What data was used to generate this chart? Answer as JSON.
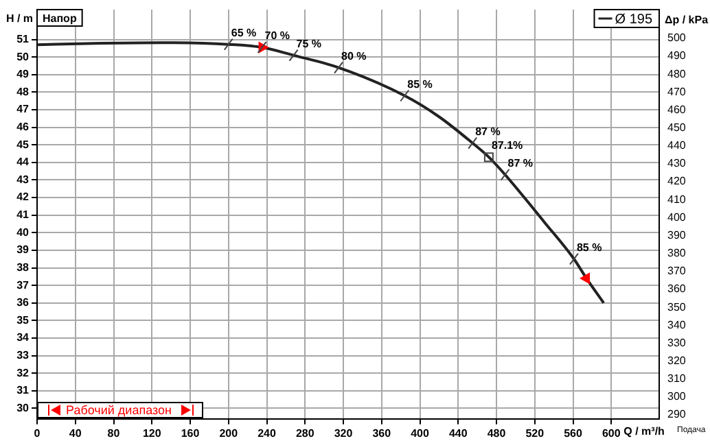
{
  "chart_data": {
    "type": "line",
    "xlabel": "Q / m³/h",
    "ylabel": "H / m",
    "y2label": "Δp / kPa",
    "xlim": [
      0,
      650
    ],
    "xticks": [
      0,
      40,
      80,
      120,
      160,
      200,
      240,
      280,
      320,
      360,
      400,
      440,
      480,
      520,
      560,
      600
    ],
    "ylim": [
      29.4,
      52.7
    ],
    "yticks": [
      30,
      31,
      32,
      33,
      34,
      35,
      36,
      37,
      38,
      39,
      40,
      41,
      42,
      43,
      44,
      45,
      46,
      47,
      48,
      49,
      50,
      51
    ],
    "y2lim": [
      287.8,
      516
    ],
    "y2ticks": [
      290,
      300,
      310,
      320,
      330,
      340,
      350,
      360,
      370,
      380,
      390,
      400,
      410,
      420,
      430,
      440,
      450,
      460,
      470,
      480,
      490,
      500
    ],
    "grid": true,
    "legend": "top right",
    "line_style": "solid",
    "series": [
      {
        "name": "Ø 195",
        "color": "#222222",
        "x": [
          0,
          60,
          130,
          200,
          235,
          268,
          315,
          384,
          420,
          455,
          472,
          489,
          530,
          561,
          574,
          592
        ],
        "values": [
          50.7,
          50.78,
          50.82,
          50.72,
          50.55,
          50.1,
          49.4,
          47.8,
          46.6,
          45.1,
          44.3,
          43.3,
          40.6,
          38.5,
          37.4,
          36.0
        ]
      },
      {
        "type": "scatter",
        "color": "#ff0000",
        "x": [
          235,
          574
        ],
        "values": [
          50.55,
          37.4
        ]
      }
    ],
    "annotations": [
      {
        "text": "65 %",
        "x": 200,
        "y": 50.72
      },
      {
        "text": "70 %",
        "x": 235,
        "y": 50.55
      },
      {
        "text": "75 %",
        "x": 268,
        "y": 50.1
      },
      {
        "text": "80 %",
        "x": 315,
        "y": 49.4
      },
      {
        "text": "85 %",
        "x": 384,
        "y": 47.8
      },
      {
        "text": "87 %",
        "x": 455,
        "y": 45.1
      },
      {
        "text": "87.1%",
        "x": 472,
        "y": 44.3
      },
      {
        "text": "87 %",
        "x": 489,
        "y": 43.3
      },
      {
        "text": "85 %",
        "x": 561,
        "y": 38.5
      },
      "Напор",
      "Подача",
      "Рабочий диапазон"
    ]
  }
}
